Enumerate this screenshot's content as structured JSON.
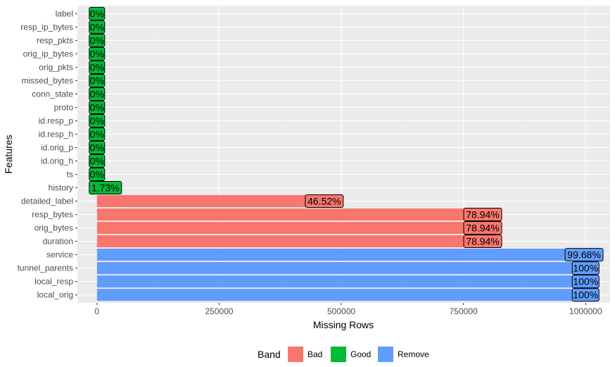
{
  "chart_data": {
    "type": "bar",
    "orientation": "horizontal",
    "xlabel": "Missing Rows",
    "ylabel": "Features",
    "xlim": [
      -40000,
      1050000
    ],
    "xticks": [
      0,
      250000,
      500000,
      750000,
      1000000
    ],
    "xtick_labels": [
      "0",
      "250000",
      "500000",
      "750000",
      "1000000"
    ],
    "grid": true,
    "legend": {
      "title": "Band",
      "position": "bottom",
      "entries": [
        {
          "name": "Bad",
          "color": "#F8766D"
        },
        {
          "name": "Good",
          "color": "#00BA38"
        },
        {
          "name": "Remove",
          "color": "#619CFF"
        }
      ]
    },
    "bars": [
      {
        "feature": "label",
        "value": 0,
        "pct_label": "0%",
        "band": "Good"
      },
      {
        "feature": "resp_ip_bytes",
        "value": 0,
        "pct_label": "0%",
        "band": "Good"
      },
      {
        "feature": "resp_pkts",
        "value": 0,
        "pct_label": "0%",
        "band": "Good"
      },
      {
        "feature": "orig_ip_bytes",
        "value": 0,
        "pct_label": "0%",
        "band": "Good"
      },
      {
        "feature": "orig_pkts",
        "value": 0,
        "pct_label": "0%",
        "band": "Good"
      },
      {
        "feature": "missed_bytes",
        "value": 0,
        "pct_label": "0%",
        "band": "Good"
      },
      {
        "feature": "conn_state",
        "value": 0,
        "pct_label": "0%",
        "band": "Good"
      },
      {
        "feature": "proto",
        "value": 0,
        "pct_label": "0%",
        "band": "Good"
      },
      {
        "feature": "id.resp_p",
        "value": 0,
        "pct_label": "0%",
        "band": "Good"
      },
      {
        "feature": "id.resp_h",
        "value": 0,
        "pct_label": "0%",
        "band": "Good"
      },
      {
        "feature": "id.orig_p",
        "value": 0,
        "pct_label": "0%",
        "band": "Good"
      },
      {
        "feature": "id.orig_h",
        "value": 0,
        "pct_label": "0%",
        "band": "Good"
      },
      {
        "feature": "ts",
        "value": 0,
        "pct_label": "0%",
        "band": "Good"
      },
      {
        "feature": "history",
        "value": 17300,
        "pct_label": "1.73%",
        "band": "Good"
      },
      {
        "feature": "detailed_label",
        "value": 465200,
        "pct_label": "46.52%",
        "band": "Bad"
      },
      {
        "feature": "resp_bytes",
        "value": 789400,
        "pct_label": "78.94%",
        "band": "Bad"
      },
      {
        "feature": "orig_bytes",
        "value": 789400,
        "pct_label": "78.94%",
        "band": "Bad"
      },
      {
        "feature": "duration",
        "value": 789400,
        "pct_label": "78.94%",
        "band": "Bad"
      },
      {
        "feature": "service",
        "value": 996800,
        "pct_label": "99.68%",
        "band": "Remove"
      },
      {
        "feature": "tunnel_parents",
        "value": 1000000,
        "pct_label": "100%",
        "band": "Remove"
      },
      {
        "feature": "local_resp",
        "value": 1000000,
        "pct_label": "100%",
        "band": "Remove"
      },
      {
        "feature": "local_orig",
        "value": 1000000,
        "pct_label": "100%",
        "band": "Remove"
      }
    ]
  }
}
